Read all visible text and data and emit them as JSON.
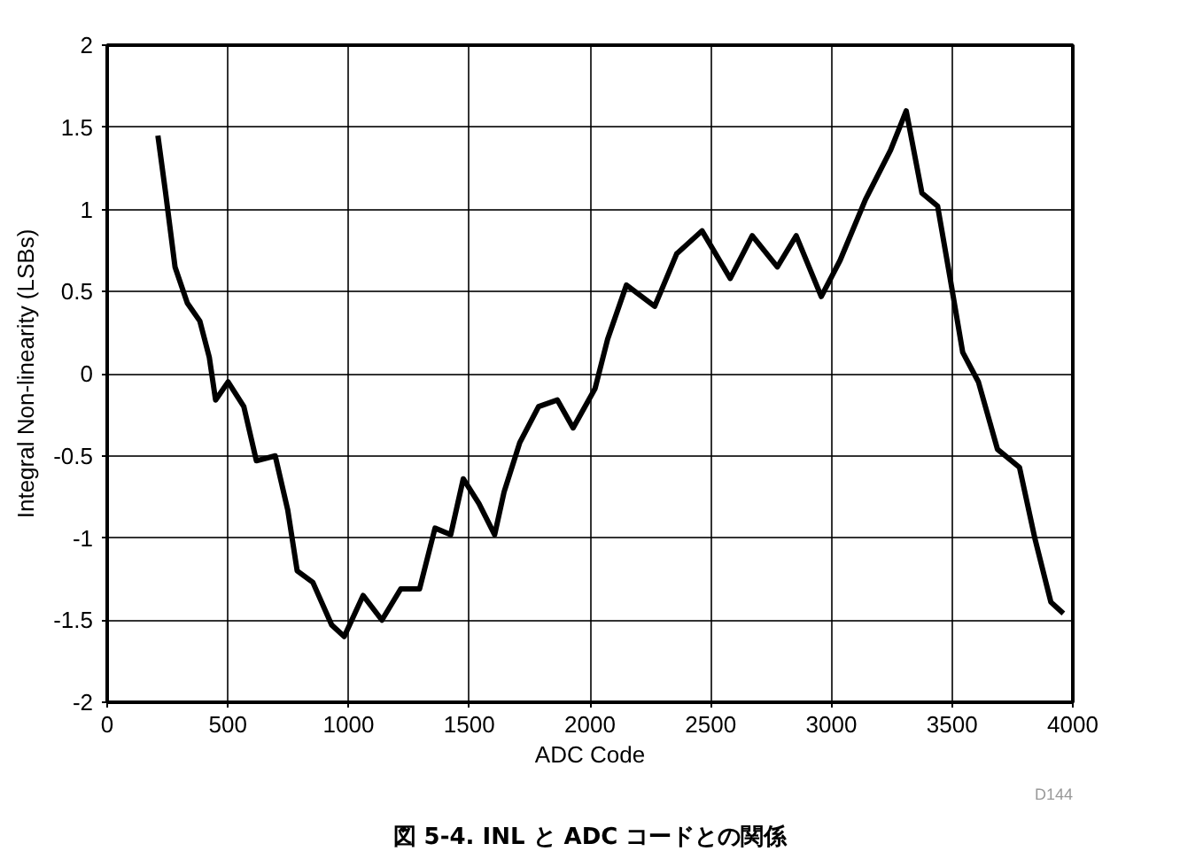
{
  "chart_data": {
    "type": "line",
    "title": "図 5-4. INL と ADC コードとの関係",
    "xlabel": "ADC Code",
    "ylabel": "Integral Non-linearity (LSBs)",
    "annotations": [
      "D144"
    ],
    "x": [
      210,
      242,
      281,
      332,
      384,
      423,
      449,
      501,
      566,
      618,
      696,
      748,
      787,
      852,
      930,
      982,
      1060,
      1138,
      1216,
      1294,
      1358,
      1423,
      1475,
      1540,
      1605,
      1644,
      1709,
      1787,
      1865,
      1930,
      2021,
      2073,
      2151,
      2268,
      2359,
      2464,
      2581,
      2672,
      2776,
      2854,
      2958,
      3036,
      3141,
      3245,
      3310,
      3375,
      3440,
      3492,
      3544,
      3609,
      3688,
      3779,
      3844,
      3909,
      3961
    ],
    "series": [
      {
        "color": "#000000",
        "values": [
          1.45,
          1.1,
          0.65,
          0.43,
          0.32,
          0.1,
          -0.16,
          -0.05,
          -0.2,
          -0.53,
          -0.5,
          -0.83,
          -1.2,
          -1.27,
          -1.53,
          -1.6,
          -1.35,
          -1.5,
          -1.31,
          -1.31,
          -0.94,
          -0.98,
          -0.64,
          -0.79,
          -0.98,
          -0.72,
          -0.42,
          -0.2,
          -0.16,
          -0.33,
          -0.09,
          0.21,
          0.54,
          0.41,
          0.73,
          0.87,
          0.58,
          0.84,
          0.65,
          0.84,
          0.47,
          0.69,
          1.06,
          1.36,
          1.6,
          1.1,
          1.02,
          0.58,
          0.13,
          -0.05,
          -0.46,
          -0.57,
          -1.01,
          -1.39,
          -1.46
        ]
      }
    ],
    "xlim": [
      0,
      4000
    ],
    "xticks": [
      0,
      500,
      1000,
      1500,
      2000,
      2500,
      3000,
      3500,
      4000
    ],
    "ylim": [
      -2,
      2
    ],
    "yticks": [
      -2,
      -1.5,
      -1,
      -0.5,
      0,
      0.5,
      1,
      1.5,
      2
    ],
    "grid": true,
    "marker": "none",
    "line_style": "solid"
  }
}
